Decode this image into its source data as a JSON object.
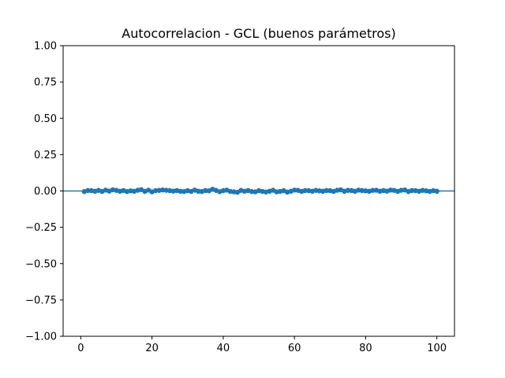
{
  "chart_data": {
    "type": "scatter",
    "title": "Autocorrelacion - GCL (buenos parámetros)",
    "xlabel": "",
    "ylabel": "",
    "xlim": [
      -4.95,
      104.95
    ],
    "ylim": [
      -1.0,
      1.0
    ],
    "x_ticks": [
      0,
      20,
      40,
      60,
      80,
      100
    ],
    "x_tick_labels": [
      "0",
      "20",
      "40",
      "60",
      "80",
      "100"
    ],
    "y_ticks": [
      1.0,
      0.75,
      0.5,
      0.25,
      0.0,
      -0.25,
      -0.5,
      -0.75,
      -1.0
    ],
    "y_tick_labels": [
      "1.00",
      "0.75",
      "0.50",
      "0.25",
      "0.00",
      "−0.25",
      "−0.50",
      "−0.75",
      "−1.00"
    ],
    "grid": false,
    "reference_line_y": 0.0,
    "series_color": "#1f77b4",
    "series": [
      {
        "x": [
          1,
          2,
          3,
          4,
          5,
          6,
          7,
          8,
          9,
          10,
          11,
          12,
          13,
          14,
          15,
          16,
          17,
          18,
          19,
          20,
          21,
          22,
          23,
          24,
          25,
          26,
          27,
          28,
          29,
          30,
          31,
          32,
          33,
          34,
          35,
          36,
          37,
          38,
          39,
          40,
          41,
          42,
          43,
          44,
          45,
          46,
          47,
          48,
          49,
          50,
          51,
          52,
          53,
          54,
          55,
          56,
          57,
          58,
          59,
          60,
          61,
          62,
          63,
          64,
          65,
          66,
          67,
          68,
          69,
          70,
          71,
          72,
          73,
          74,
          75,
          76,
          77,
          78,
          79,
          80,
          81,
          82,
          83,
          84,
          85,
          86,
          87,
          88,
          89,
          90,
          91,
          92,
          93,
          94,
          95,
          96,
          97,
          98,
          99,
          100
        ],
        "values": [
          -0.004,
          0.003,
          0.002,
          -0.002,
          0.004,
          -0.003,
          0.006,
          -0.001,
          0.008,
          0.004,
          -0.002,
          0.003,
          -0.004,
          0.001,
          -0.002,
          0.005,
          0.009,
          -0.003,
          0.006,
          -0.006,
          0.002,
          0.004,
          0.007,
          0.005,
          0.002,
          -0.001,
          0.003,
          -0.002,
          -0.004,
          0.002,
          -0.003,
          0.006,
          -0.002,
          -0.004,
          0.003,
          0.001,
          0.012,
          0.004,
          -0.005,
          0.002,
          0.006,
          -0.003,
          -0.006,
          -0.009,
          0.004,
          -0.002,
          0.003,
          -0.004,
          -0.006,
          0.002,
          -0.003,
          -0.007,
          -0.002,
          0.005,
          -0.006,
          -0.003,
          0.002,
          -0.008,
          -0.002,
          0.006,
          0.004,
          -0.003,
          0.003,
          0.002,
          -0.002,
          0.004,
          0.001,
          -0.002,
          0.003,
          0.002,
          -0.003,
          0.005,
          0.008,
          -0.002,
          0.004,
          0.003,
          -0.002,
          0.006,
          0.003,
          0.001,
          -0.002,
          0.004,
          0.005,
          -0.002,
          0.003,
          -0.001,
          0.006,
          0.004,
          -0.003,
          0.005,
          0.007,
          -0.004,
          0.003,
          0.002,
          -0.002,
          0.004,
          0.001,
          -0.003,
          0.002,
          -0.002
        ]
      }
    ]
  }
}
